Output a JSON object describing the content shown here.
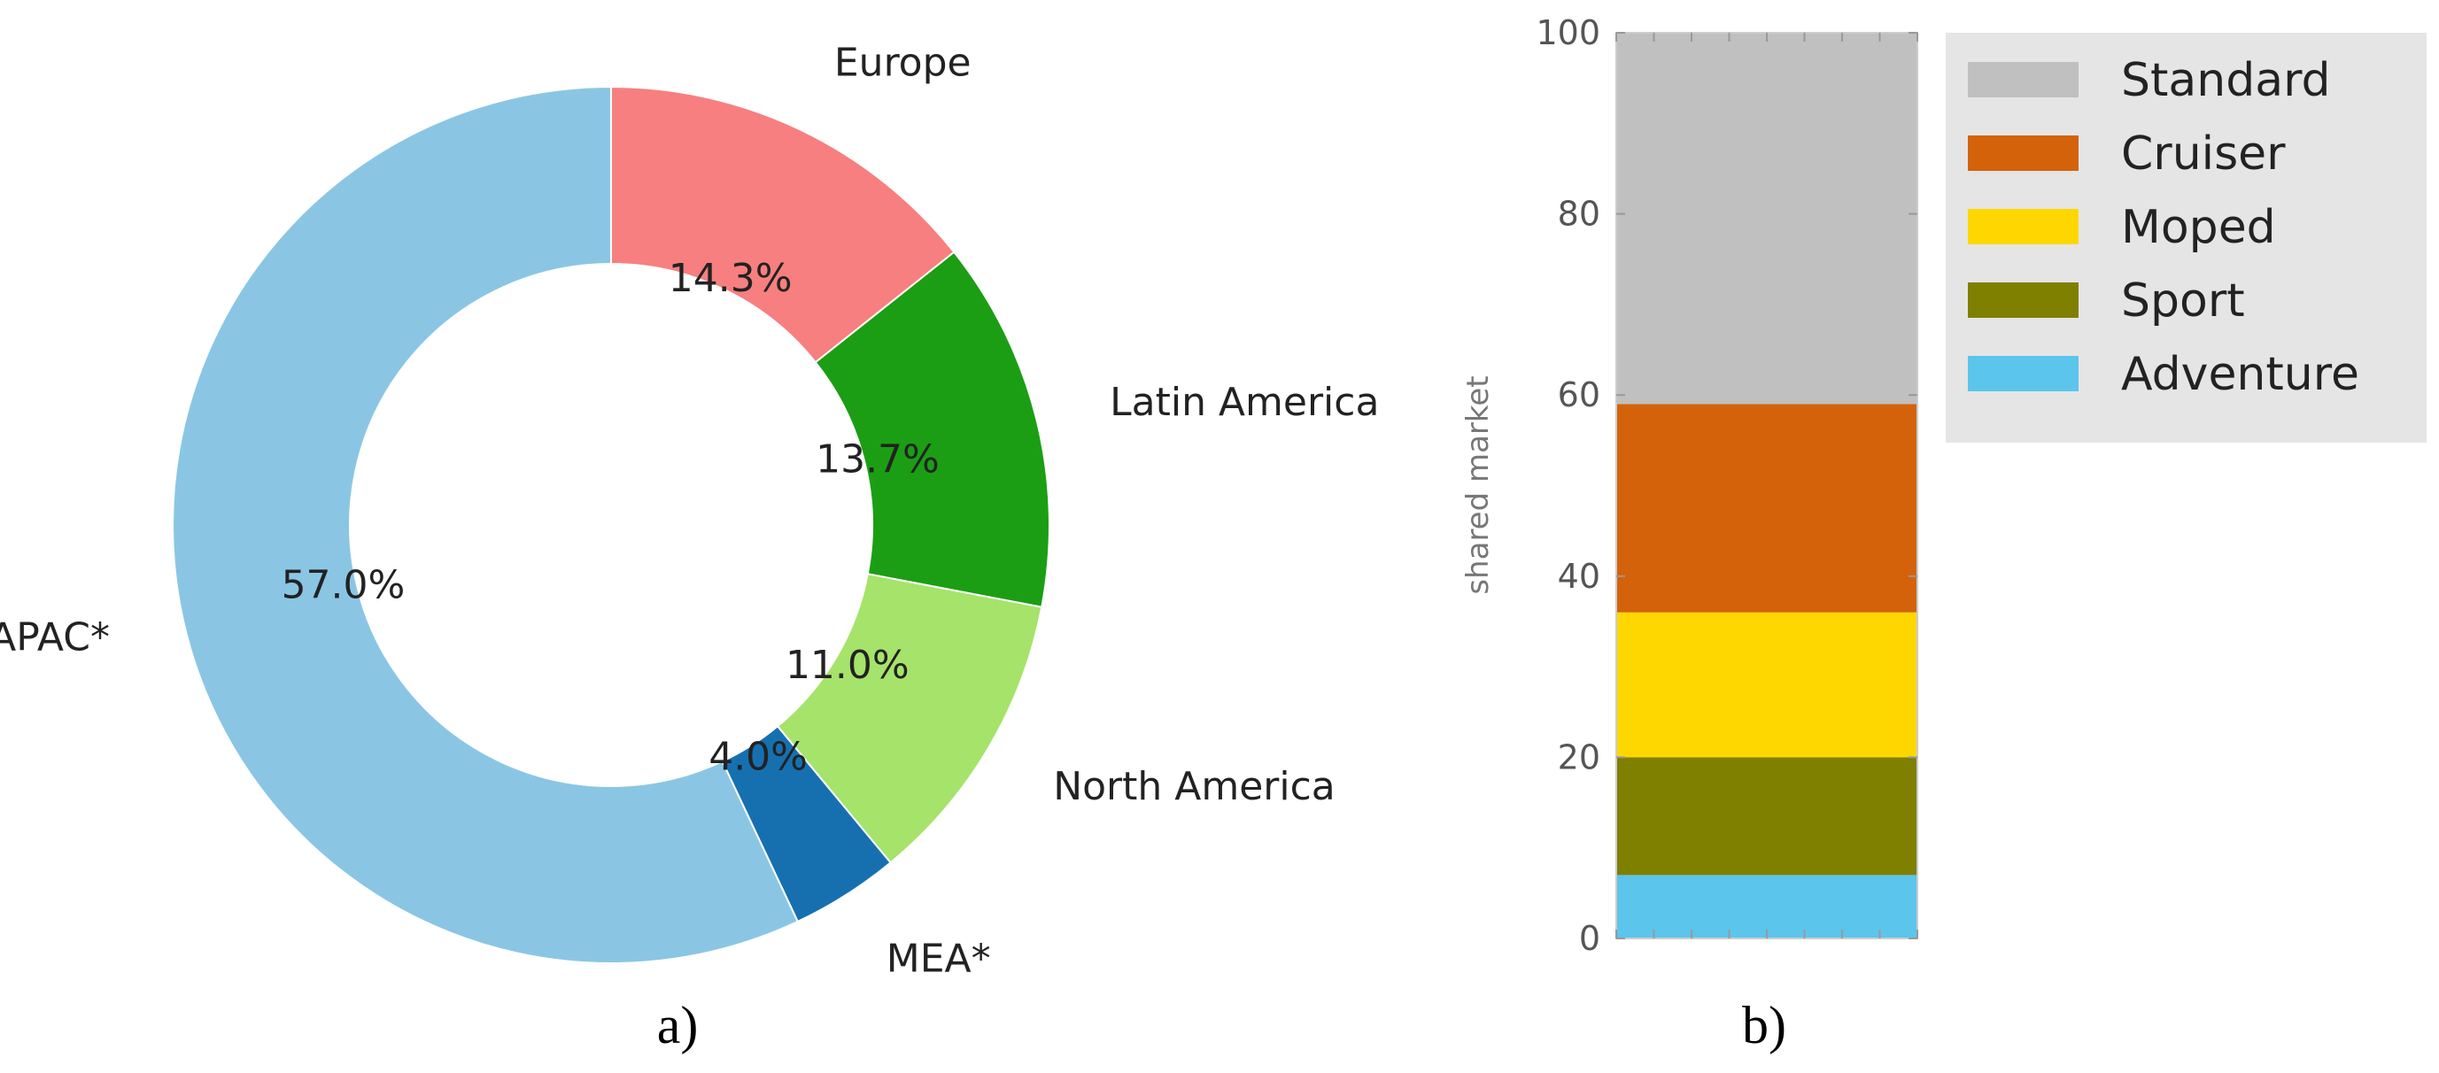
{
  "chart_data": [
    {
      "type": "pie",
      "style": "donut",
      "caption": "a)",
      "categories": [
        "Europe",
        "Latin America",
        "North America",
        "MEA*",
        "APAC*"
      ],
      "values": [
        14.3,
        13.7,
        11.0,
        4.0,
        57.0
      ],
      "value_labels": [
        "14.3%",
        "13.7%",
        "11.0%",
        "4.0%",
        "57.0%"
      ],
      "colors": [
        "#f77f7f",
        "#1b9e14",
        "#a6e36a",
        "#1670b0",
        "#8ac6e4"
      ]
    },
    {
      "type": "bar",
      "stacked": true,
      "caption": "b)",
      "ylabel": "shared market",
      "ylim": [
        0,
        100
      ],
      "yticks": [
        0,
        20,
        40,
        60,
        80,
        100
      ],
      "legend_position": "top-right",
      "series": [
        {
          "name": "Adventure",
          "values": [
            7
          ],
          "color": "#5bc5ec"
        },
        {
          "name": "Sport",
          "values": [
            13
          ],
          "color": "#7f7f00"
        },
        {
          "name": "Moped",
          "values": [
            16
          ],
          "color": "#ffd700"
        },
        {
          "name": "Cruiser",
          "values": [
            23
          ],
          "color": "#d4620a"
        },
        {
          "name": "Standard",
          "values": [
            41
          ],
          "color": "#c0c0c0"
        }
      ],
      "legend_order": [
        "Standard",
        "Cruiser",
        "Moped",
        "Sport",
        "Adventure"
      ]
    }
  ]
}
